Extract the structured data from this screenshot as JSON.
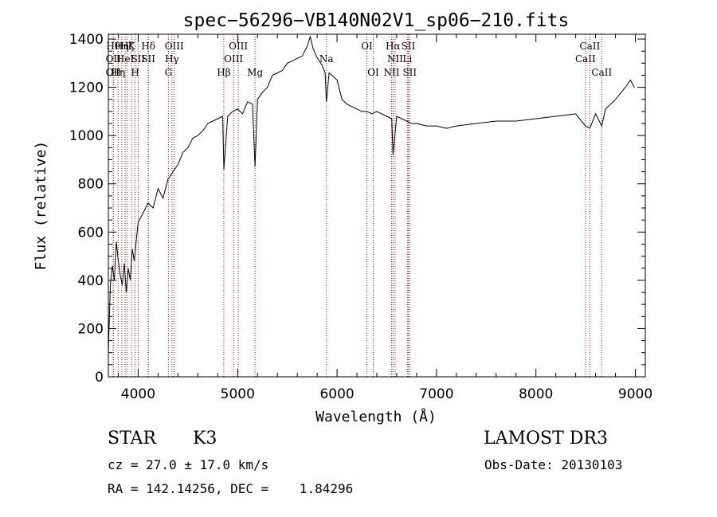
{
  "chart_data": {
    "type": "line",
    "title": "spec−56296−VB140N02V1_sp06−210.fits",
    "xlabel": "Wavelength (Å)",
    "ylabel": "Flux (relative)",
    "xlim": [
      3700,
      9100
    ],
    "ylim": [
      0,
      1420
    ],
    "xticks": [
      4000,
      5000,
      6000,
      7000,
      8000,
      9000
    ],
    "yticks": [
      0,
      200,
      400,
      600,
      800,
      1000,
      1200,
      1400
    ],
    "series": [
      {
        "x": [
          3700,
          3720,
          3740,
          3760,
          3780,
          3800,
          3820,
          3840,
          3860,
          3880,
          3900,
          3920,
          3940,
          3960,
          3980,
          4000,
          4050,
          4100,
          4150,
          4200,
          4250,
          4300,
          4350,
          4400,
          4450,
          4500,
          4550,
          4600,
          4650,
          4700,
          4750,
          4800,
          4850,
          4862,
          4900,
          4950,
          5000,
          5050,
          5100,
          5150,
          5175,
          5200,
          5250,
          5300,
          5350,
          5400,
          5450,
          5500,
          5550,
          5600,
          5650,
          5700,
          5730,
          5760,
          5790,
          5820,
          5850,
          5880,
          5893,
          5920,
          5950,
          6000,
          6050,
          6100,
          6150,
          6200,
          6250,
          6300,
          6350,
          6400,
          6450,
          6500,
          6550,
          6563,
          6600,
          6650,
          6700,
          6750,
          6800,
          6900,
          7000,
          7100,
          7200,
          7400,
          7600,
          7800,
          8000,
          8200,
          8400,
          8498,
          8542,
          8600,
          8662,
          8700,
          8800,
          8900,
          8950,
          8990
        ],
        "y": [
          100,
          380,
          460,
          400,
          560,
          480,
          420,
          380,
          470,
          350,
          450,
          400,
          530,
          480,
          560,
          640,
          680,
          720,
          700,
          780,
          740,
          820,
          850,
          880,
          930,
          950,
          990,
          1000,
          1020,
          1050,
          1060,
          1070,
          1080,
          860,
          1080,
          1100,
          1110,
          1090,
          1140,
          1130,
          870,
          1150,
          1180,
          1200,
          1250,
          1260,
          1270,
          1300,
          1310,
          1320,
          1330,
          1370,
          1410,
          1360,
          1330,
          1310,
          1290,
          1260,
          1140,
          1260,
          1250,
          1230,
          1150,
          1130,
          1120,
          1110,
          1100,
          1100,
          1090,
          1100,
          1090,
          1080,
          1070,
          920,
          1080,
          1070,
          1060,
          1050,
          1050,
          1040,
          1040,
          1030,
          1040,
          1050,
          1060,
          1060,
          1070,
          1080,
          1090,
          1040,
          1030,
          1090,
          1040,
          1110,
          1150,
          1200,
          1230,
          1200
        ]
      }
    ],
    "lines": [
      {
        "x": 3750,
        "label": "Hθ",
        "row": 1
      },
      {
        "x": 3750,
        "label": "OII",
        "row": 2
      },
      {
        "x": 3750,
        "label": "OII",
        "row": 3
      },
      {
        "x": 3798,
        "label": "Hη",
        "row": 3
      },
      {
        "x": 3835,
        "label": "Hη",
        "row": 1
      },
      {
        "x": 3869,
        "label": "HeI",
        "row": 2
      },
      {
        "x": 3889,
        "label": "Hζ",
        "row": 1
      },
      {
        "x": 3934,
        "label": "K",
        "row": 1
      },
      {
        "x": 3969,
        "label": "H",
        "row": 3
      },
      {
        "x": 4000,
        "label": "SII",
        "row": 2
      },
      {
        "x": 4102,
        "label": "Hδ",
        "row": 1
      },
      {
        "x": 4102,
        "label": "SII",
        "row": 2
      },
      {
        "x": 4304,
        "label": "G",
        "row": 3
      },
      {
        "x": 4340,
        "label": "Hγ",
        "row": 2
      },
      {
        "x": 4363,
        "label": "OIII",
        "row": 1
      },
      {
        "x": 4861,
        "label": "Hβ",
        "row": 3
      },
      {
        "x": 4959,
        "label": "OIII",
        "row": 2
      },
      {
        "x": 5007,
        "label": "OIII",
        "row": 1
      },
      {
        "x": 5175,
        "label": "Mg",
        "row": 3
      },
      {
        "x": 5893,
        "label": "Na",
        "row": 2
      },
      {
        "x": 6300,
        "label": "OI",
        "row": 1
      },
      {
        "x": 6364,
        "label": "OI",
        "row": 3
      },
      {
        "x": 6548,
        "label": "NII",
        "row": 3
      },
      {
        "x": 6563,
        "label": "Hα",
        "row": 1
      },
      {
        "x": 6584,
        "label": "NII",
        "row": 2
      },
      {
        "x": 6707,
        "label": "Li",
        "row": 2
      },
      {
        "x": 6717,
        "label": "SII",
        "row": 1
      },
      {
        "x": 6731,
        "label": "SII",
        "row": 3
      },
      {
        "x": 8498,
        "label": "CaII",
        "row": 2
      },
      {
        "x": 8542,
        "label": "CaII",
        "row": 1
      },
      {
        "x": 8662,
        "label": "CaII",
        "row": 3
      }
    ]
  },
  "info": {
    "class": "STAR",
    "subclass": "K3",
    "survey": "LAMOST DR3",
    "cz": "cz = 27.0 ± 17.0 km/s",
    "obs_date": "Obs-Date: 20130103",
    "radec": "RA = 142.14256, DEC =    1.84296"
  },
  "colors": {
    "lines": "#cc0000",
    "spectrum": "#000000"
  }
}
